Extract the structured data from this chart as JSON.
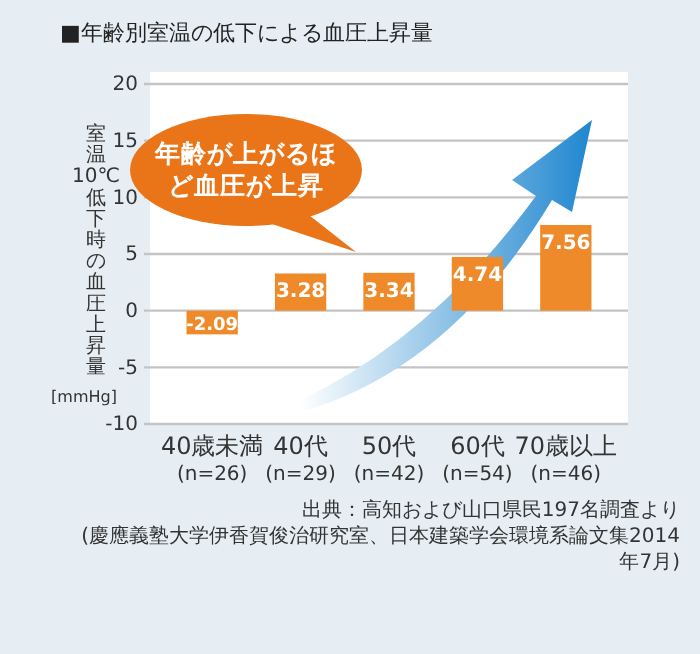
{
  "chart_data": {
    "type": "bar",
    "title": "■年齢別室温の低下による血圧上昇量",
    "ylabel": "室温10℃低下時の血圧上昇量 [mmHg]",
    "categories": [
      "40歳未満\n(n=26)",
      "40代\n(n=29)",
      "50代\n(n=42)",
      "60代\n(n=54)",
      "70歳以上\n(n=46)"
    ],
    "values": [
      -2.09,
      3.28,
      3.34,
      4.74,
      7.56
    ],
    "color": "#ef8a2a",
    "ylim": [
      -10,
      20
    ],
    "yticks": [
      -10,
      -5,
      0,
      5,
      10,
      15,
      20
    ],
    "grid": "y",
    "data_labels": true,
    "annotations": [
      "年齢が上がるほど血圧が上昇",
      "出典：高知および山口県民197名調査より",
      "(慶應義塾大学伊香賀俊治研究室、日本建築学会環境系論文集2014年7月)"
    ]
  }
}
